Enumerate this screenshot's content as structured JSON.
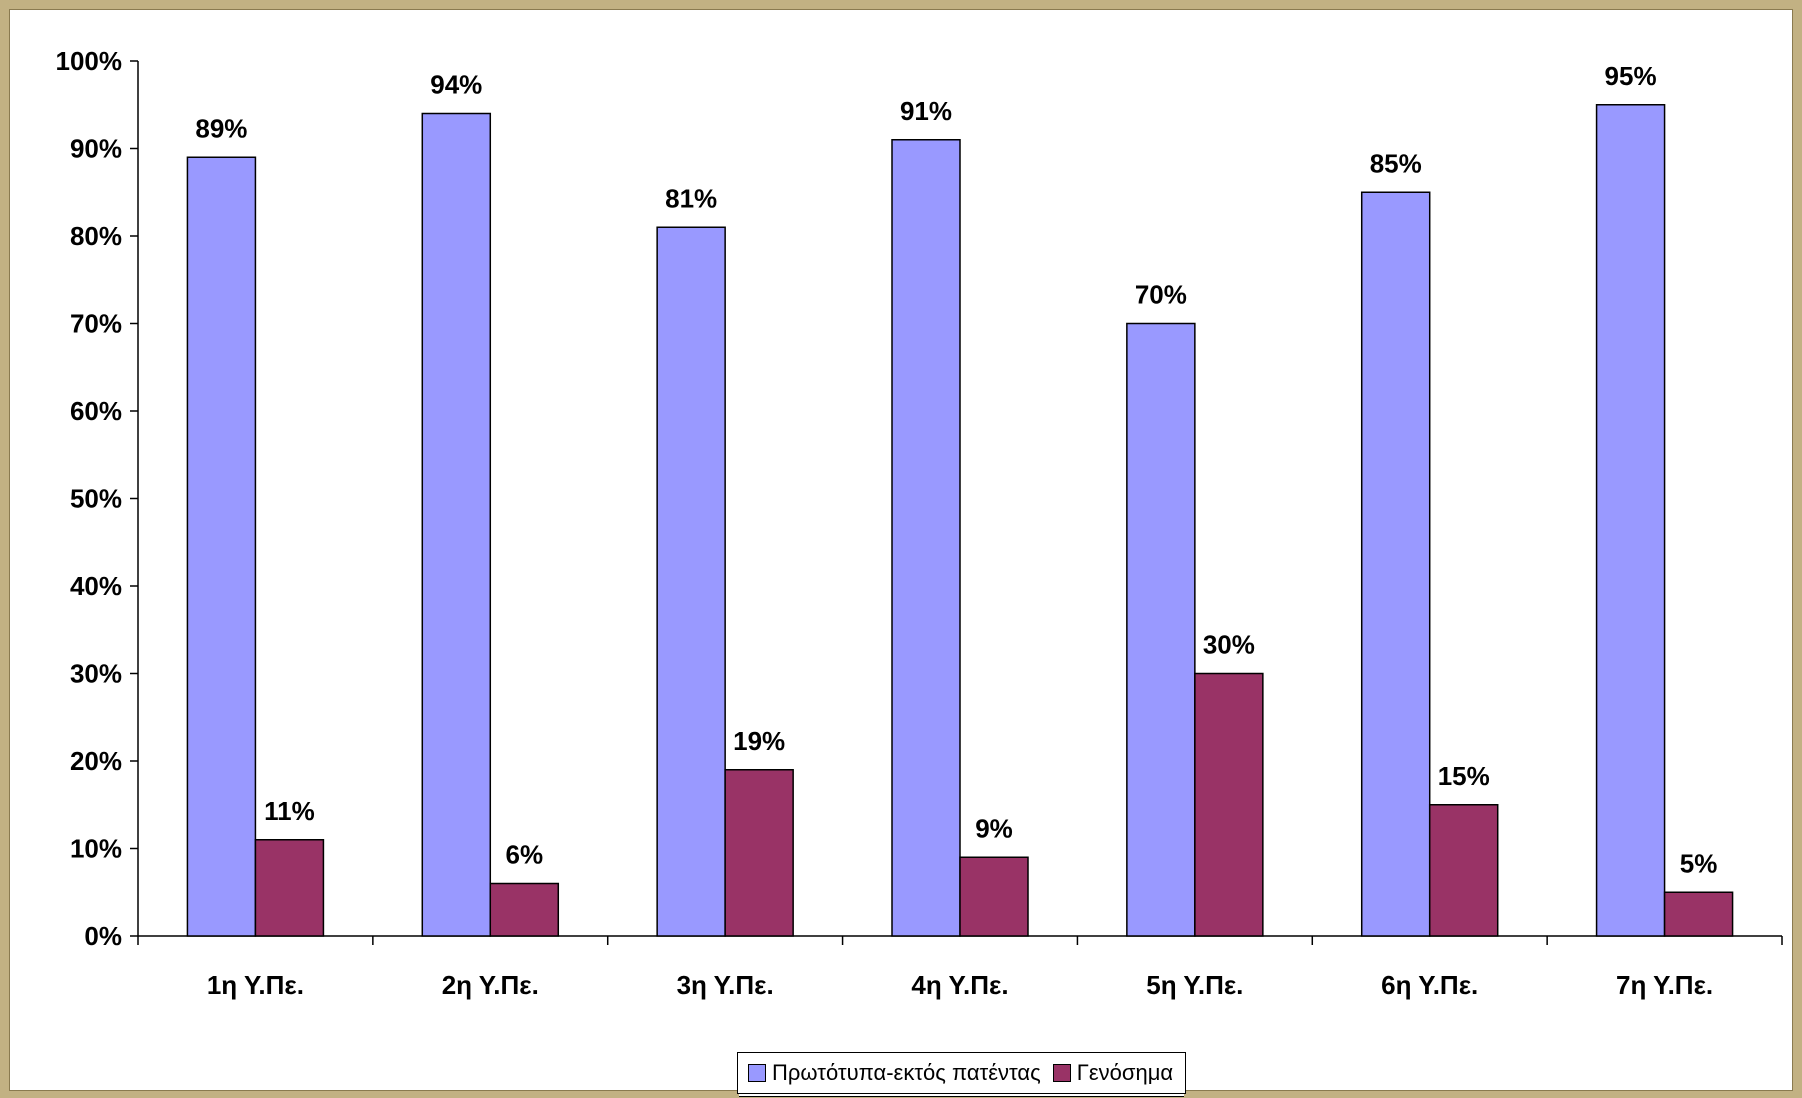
{
  "chart_data": {
    "type": "bar",
    "categories": [
      "1η Υ.Πε.",
      "2η Υ.Πε.",
      "3η Υ.Πε.",
      "4η Υ.Πε.",
      "5η Υ.Πε.",
      "6η Υ.Πε.",
      "7η Υ.Πε."
    ],
    "series": [
      {
        "name": "Πρωτότυπα-εκτός πατέντας",
        "color": "#9999ff",
        "values": [
          89,
          94,
          81,
          91,
          70,
          85,
          95
        ],
        "labels": [
          "89%",
          "94%",
          "81%",
          "91%",
          "70%",
          "85%",
          "95%"
        ]
      },
      {
        "name": "Γενόσημα",
        "color": "#993366",
        "values": [
          11,
          6,
          19,
          9,
          30,
          15,
          5
        ],
        "labels": [
          "11%",
          "6%",
          "19%",
          "9%",
          "30%",
          "15%",
          "5%"
        ]
      }
    ],
    "ylim": [
      0,
      100
    ],
    "yticks": [
      0,
      10,
      20,
      30,
      40,
      50,
      60,
      70,
      80,
      90,
      100
    ],
    "ytick_labels": [
      "0%",
      "10%",
      "20%",
      "30%",
      "40%",
      "50%",
      "60%",
      "70%",
      "80%",
      "90%",
      "100%"
    ],
    "grid": false,
    "legend_position": "bottom-center",
    "title": "",
    "xlabel": "",
    "ylabel": ""
  },
  "legend": {
    "items": [
      {
        "label": "Πρωτότυπα-εκτός πατέντας",
        "color": "#9999ff"
      },
      {
        "label": "Γενόσημα",
        "color": "#993366"
      }
    ]
  },
  "colors": {
    "background": "#c2b183",
    "plot_area": "#ffffff",
    "axis": "#000000"
  }
}
